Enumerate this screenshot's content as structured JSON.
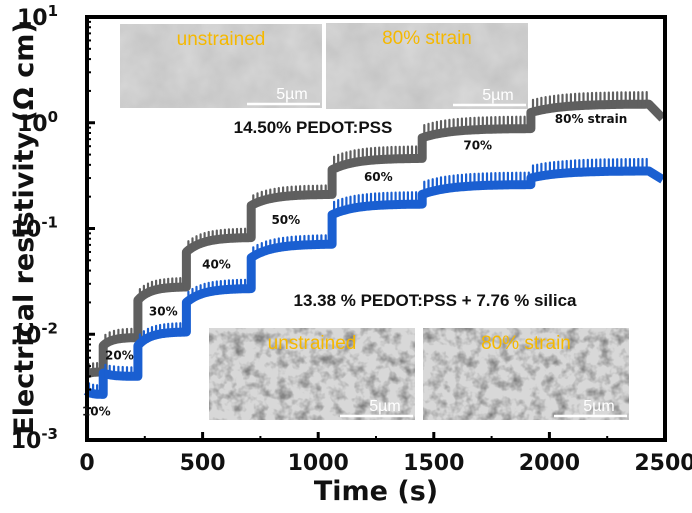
{
  "chart_data": {
    "type": "line",
    "title": "",
    "xlabel": "Time (s)",
    "ylabel": "Electrical resistivity (Ω cm)",
    "xlim": [
      0,
      2500
    ],
    "ylim": [
      0.001,
      10
    ],
    "yscale": "log",
    "grid": false,
    "x_ticks": [
      {
        "value": 0,
        "label": "0"
      },
      {
        "value": 500,
        "label": "500"
      },
      {
        "value": 1000,
        "label": "1000"
      },
      {
        "value": 1500,
        "label": "1500"
      },
      {
        "value": 2000,
        "label": "2000"
      },
      {
        "value": 2500,
        "label": "2500"
      }
    ],
    "y_ticks": [
      {
        "value": 0.001,
        "base": "10",
        "exp": "-3"
      },
      {
        "value": 0.01,
        "base": "10",
        "exp": "-2"
      },
      {
        "value": 0.1,
        "base": "10",
        "exp": "-1"
      },
      {
        "value": 1,
        "base": "10",
        "exp": "0"
      },
      {
        "value": 10,
        "base": "10",
        "exp": "1"
      }
    ],
    "series": [
      {
        "name": "14.50% PEDOT:PSS",
        "color": "#5f5f5f",
        "steps": [
          {
            "t_start": 0,
            "t_end": 70,
            "start": 0.0042,
            "end": 0.0044
          },
          {
            "t_start": 70,
            "t_end": 220,
            "start": 0.0078,
            "end": 0.0093
          },
          {
            "t_start": 220,
            "t_end": 430,
            "start": 0.021,
            "end": 0.028
          },
          {
            "t_start": 430,
            "t_end": 710,
            "start": 0.06,
            "end": 0.082
          },
          {
            "t_start": 710,
            "t_end": 1060,
            "start": 0.165,
            "end": 0.21
          },
          {
            "t_start": 1060,
            "t_end": 1450,
            "start": 0.36,
            "end": 0.46
          },
          {
            "t_start": 1450,
            "t_end": 1920,
            "start": 0.72,
            "end": 0.88
          },
          {
            "t_start": 1920,
            "t_end": 2430,
            "start": 1.25,
            "end": 1.5
          }
        ],
        "final": {
          "t": 2490,
          "value": 1.1
        }
      },
      {
        "name": "13.38 % PEDOT:PSS + 7.76 % silica",
        "color": "#1a5fd1",
        "steps": [
          {
            "t_start": 0,
            "t_end": 70,
            "start": 0.0029,
            "end": 0.0027
          },
          {
            "t_start": 70,
            "t_end": 220,
            "start": 0.0043,
            "end": 0.004
          },
          {
            "t_start": 220,
            "t_end": 430,
            "start": 0.0078,
            "end": 0.0105
          },
          {
            "t_start": 430,
            "t_end": 710,
            "start": 0.02,
            "end": 0.027
          },
          {
            "t_start": 710,
            "t_end": 1060,
            "start": 0.053,
            "end": 0.071
          },
          {
            "t_start": 1060,
            "t_end": 1450,
            "start": 0.135,
            "end": 0.17
          },
          {
            "t_start": 1450,
            "t_end": 1920,
            "start": 0.21,
            "end": 0.26
          },
          {
            "t_start": 1920,
            "t_end": 2430,
            "start": 0.3,
            "end": 0.35
          }
        ],
        "final": {
          "t": 2490,
          "value": 0.29
        }
      }
    ],
    "annotations": [
      {
        "text": "10%",
        "x": 40,
        "y": 0.0017
      },
      {
        "text": "20%",
        "x": 140,
        "y": 0.0058
      },
      {
        "text": "30%",
        "x": 330,
        "y": 0.015
      },
      {
        "text": "40%",
        "x": 560,
        "y": 0.042
      },
      {
        "text": "50%",
        "x": 860,
        "y": 0.11
      },
      {
        "text": "60%",
        "x": 1260,
        "y": 0.28
      },
      {
        "text": "70%",
        "x": 1690,
        "y": 0.56
      },
      {
        "text": "80% strain",
        "x": 2180,
        "y": 1.0
      }
    ],
    "series_labels": [
      {
        "text": "14.50% PEDOT:PSS",
        "series": 0
      },
      {
        "text": "13.38 % PEDOT:PSS + 7.76 % silica",
        "series": 1
      }
    ],
    "insets": [
      {
        "group": "top",
        "caption": "unstrained",
        "scale_bar": "5µm"
      },
      {
        "group": "top",
        "caption": "80% strain",
        "scale_bar": "5µm"
      },
      {
        "group": "bottom",
        "caption": "unstrained",
        "scale_bar": "5µm"
      },
      {
        "group": "bottom",
        "caption": "80% strain",
        "scale_bar": "5µm"
      }
    ]
  }
}
